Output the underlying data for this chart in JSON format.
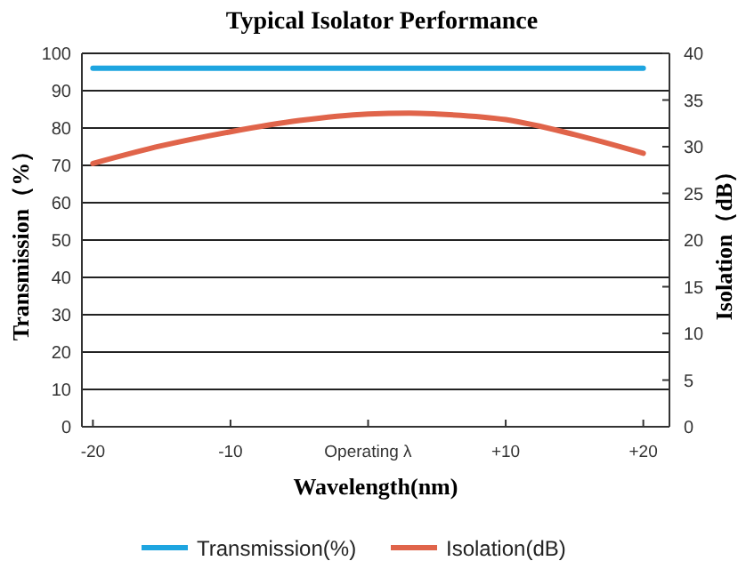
{
  "chart_data": {
    "type": "line",
    "title": "Typical Isolator Performance",
    "xlabel": "Wavelength(nm)",
    "ylabel": "Transmission（%）",
    "y2label": "Isolation（dB）",
    "xlim": [
      -20.8,
      21.9
    ],
    "xticks": [
      {
        "value": -20,
        "label": "-20"
      },
      {
        "value": -10,
        "label": "-10"
      },
      {
        "value": 0,
        "label": "Operating λ"
      },
      {
        "value": 10,
        "label": "+10"
      },
      {
        "value": 20,
        "label": "+20"
      }
    ],
    "ylim": [
      0,
      100
    ],
    "yticks": [
      0,
      10,
      20,
      30,
      40,
      50,
      60,
      70,
      80,
      90,
      100
    ],
    "y2lim": [
      0,
      40
    ],
    "y2ticks": [
      0,
      5,
      10,
      15,
      20,
      25,
      30,
      35,
      40
    ],
    "grid": "y",
    "legend": "bottom",
    "marker": "none",
    "line_style": "solid",
    "series": [
      {
        "name": "Transmission(%)",
        "color": "#1ea5e0",
        "x": [
          -20,
          20
        ],
        "values": [
          96,
          96
        ]
      },
      {
        "name": "Isolation(dB)",
        "color": "#e0644a",
        "axis": "y2",
        "x": [
          -20,
          -15,
          -10,
          -5,
          0,
          3,
          5,
          10,
          15,
          20
        ],
        "values": [
          28.2,
          30.1,
          31.6,
          32.8,
          33.5,
          33.6,
          33.5,
          32.9,
          31.3,
          29.3
        ]
      }
    ]
  }
}
